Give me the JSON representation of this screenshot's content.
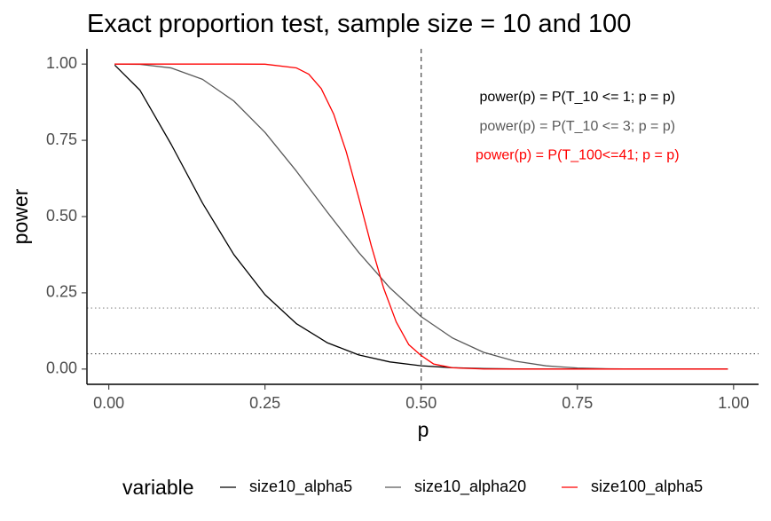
{
  "chart_data": {
    "type": "line",
    "title": "Exact proportion test, sample size = 10 and 100",
    "xlabel": "p",
    "ylabel": "power",
    "xlim": [
      -0.035,
      1.04
    ],
    "ylim": [
      -0.05,
      1.05
    ],
    "x_ticks": [
      0.0,
      0.25,
      0.5,
      0.75,
      1.0
    ],
    "x_tick_labels": [
      "0.00",
      "0.25",
      "0.50",
      "0.75",
      "1.00"
    ],
    "y_ticks": [
      0.0,
      0.25,
      0.5,
      0.75,
      1.0
    ],
    "y_tick_labels": [
      "0.00",
      "0.25",
      "0.50",
      "0.75",
      "1.00"
    ],
    "grid": false,
    "series": [
      {
        "name": "size10_alpha5",
        "color": "#000000",
        "x": [
          0.01,
          0.05,
          0.1,
          0.15,
          0.2,
          0.25,
          0.3,
          0.35,
          0.4,
          0.45,
          0.5,
          0.55,
          0.6,
          0.65,
          0.7,
          0.75,
          0.8,
          0.85,
          0.9,
          0.95,
          0.99
        ],
        "values": [
          0.9957,
          0.9139,
          0.7361,
          0.5443,
          0.3758,
          0.244,
          0.1493,
          0.086,
          0.0464,
          0.0233,
          0.0107,
          0.0045,
          0.0017,
          0.0005,
          0.0001,
          0.0,
          0.0,
          0.0,
          0.0,
          0.0,
          0.0
        ]
      },
      {
        "name": "size10_alpha20",
        "color": "#595959",
        "x": [
          0.01,
          0.05,
          0.1,
          0.15,
          0.2,
          0.25,
          0.3,
          0.35,
          0.4,
          0.45,
          0.5,
          0.55,
          0.6,
          0.65,
          0.7,
          0.75,
          0.8,
          0.85,
          0.9,
          0.95,
          0.99
        ],
        "values": [
          1.0,
          0.999,
          0.9872,
          0.95,
          0.8791,
          0.7759,
          0.6496,
          0.5138,
          0.3823,
          0.266,
          0.1719,
          0.102,
          0.0548,
          0.026,
          0.0106,
          0.0035,
          0.0009,
          0.0001,
          0.0,
          0.0,
          0.0
        ]
      },
      {
        "name": "size100_alpha5",
        "color": "#ff0000",
        "x": [
          0.01,
          0.05,
          0.1,
          0.15,
          0.2,
          0.25,
          0.3,
          0.32,
          0.34,
          0.36,
          0.38,
          0.4,
          0.42,
          0.44,
          0.46,
          0.48,
          0.5,
          0.52,
          0.55,
          0.6,
          0.7,
          0.8,
          0.9,
          0.99
        ],
        "values": [
          1.0,
          1.0,
          1.0,
          1.0,
          1.0,
          0.9996,
          0.9875,
          0.967,
          0.9195,
          0.8355,
          0.7125,
          0.5621,
          0.4052,
          0.2646,
          0.1546,
          0.0803,
          0.0443,
          0.0165,
          0.0042,
          0.0002,
          0.0,
          0.0,
          0.0,
          0.0
        ]
      }
    ],
    "reference_lines": {
      "vertical": [
        {
          "x": 0.5,
          "style": "dashed",
          "color": "#333333"
        }
      ],
      "horizontal": [
        {
          "y": 0.2,
          "style": "dotted",
          "color": "#8c8c8c"
        },
        {
          "y": 0.05,
          "style": "dotted",
          "color": "#333333"
        }
      ]
    },
    "annotations": [
      {
        "text": "power(p) = P(T_10 <= 1; p = p)",
        "color": "#000000",
        "x": 0.75,
        "y": 0.89
      },
      {
        "text": "power(p) = P(T_10 <= 3; p = p)",
        "color": "#595959",
        "x": 0.75,
        "y": 0.795
      },
      {
        "text": "power(p) = P(T_100<=41; p = p)",
        "color": "#ff0000",
        "x": 0.75,
        "y": 0.7
      }
    ],
    "legend": {
      "title": "variable",
      "position": "bottom",
      "entries": [
        {
          "label": "size10_alpha5",
          "color": "#000000"
        },
        {
          "label": "size10_alpha20",
          "color": "#595959"
        },
        {
          "label": "size100_alpha5",
          "color": "#ff0000"
        }
      ]
    }
  }
}
